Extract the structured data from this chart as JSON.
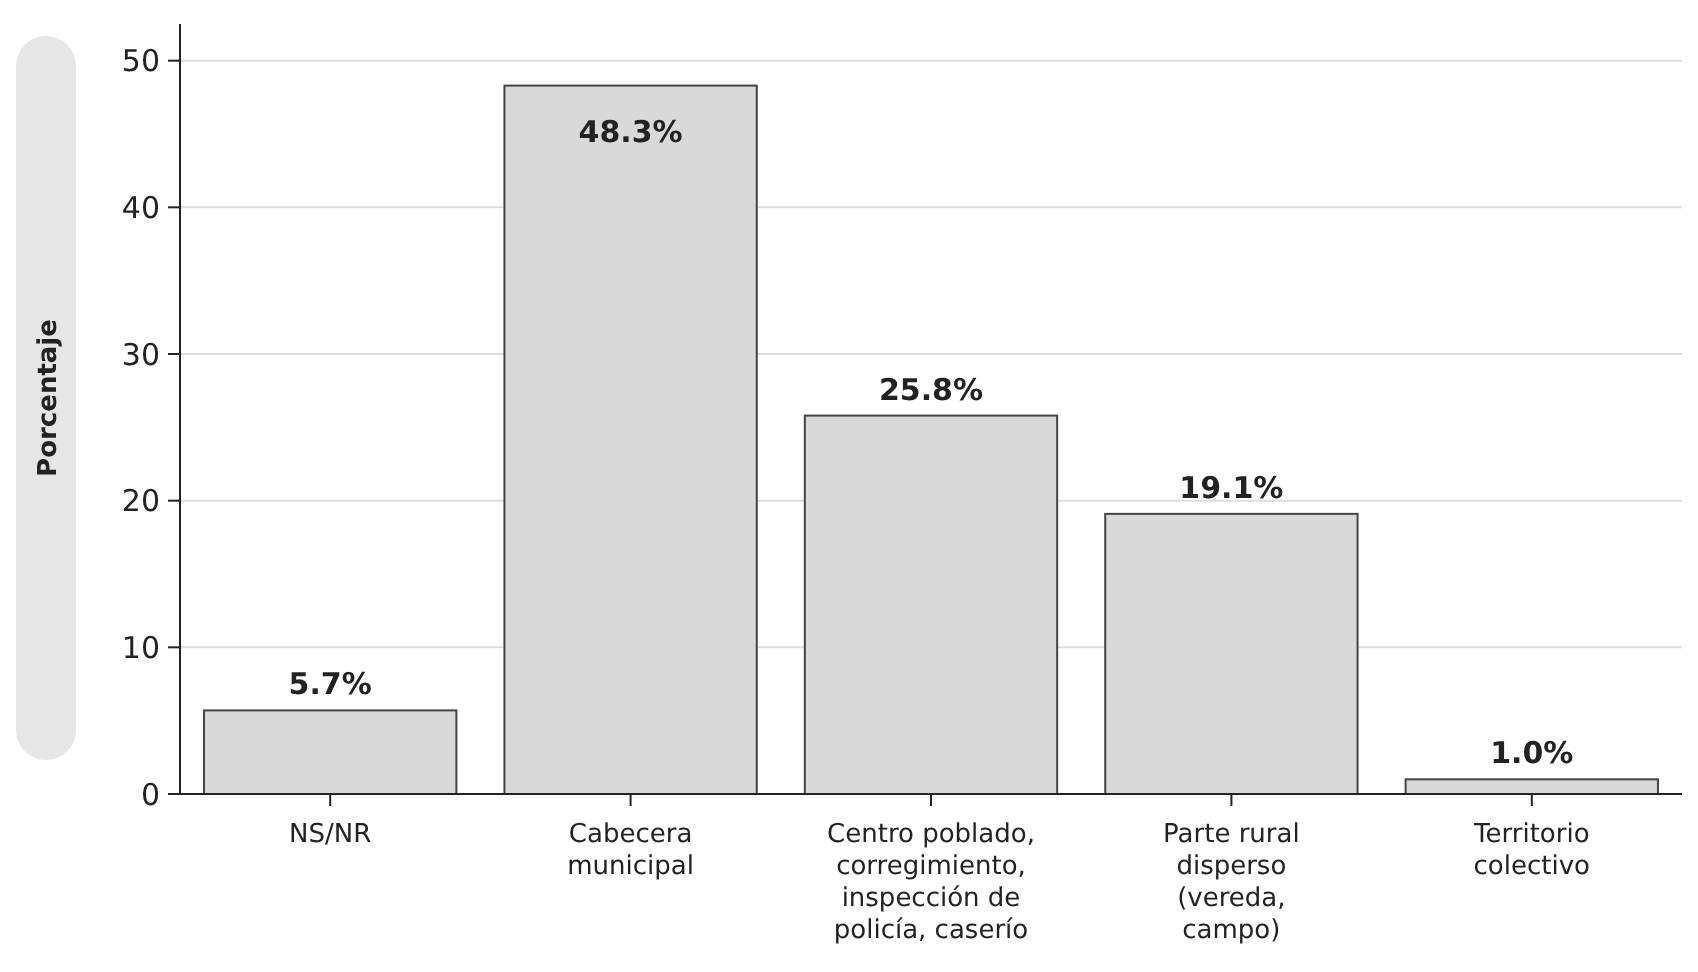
{
  "chart_data": {
    "type": "bar",
    "ylabel": "Porcentaje",
    "categories": [
      "NS/NR",
      "Cabecera\nmunicipal",
      "Centro poblado,\ncorregimiento,\ninspección de\npolicía, caserío",
      "Parte rural\ndisperso\n(vereda,\ncampo)",
      "Territorio\ncolectivo"
    ],
    "values": [
      5.7,
      48.3,
      25.8,
      19.1,
      1.0
    ],
    "value_labels": [
      "5.7%",
      "48.3%",
      "25.8%",
      "19.1%",
      "1.0%"
    ],
    "color": "#d9d9d9",
    "ylim": [
      0,
      52.5
    ],
    "yticks": [
      0,
      10,
      20,
      30,
      40,
      50
    ],
    "grid": "y"
  }
}
